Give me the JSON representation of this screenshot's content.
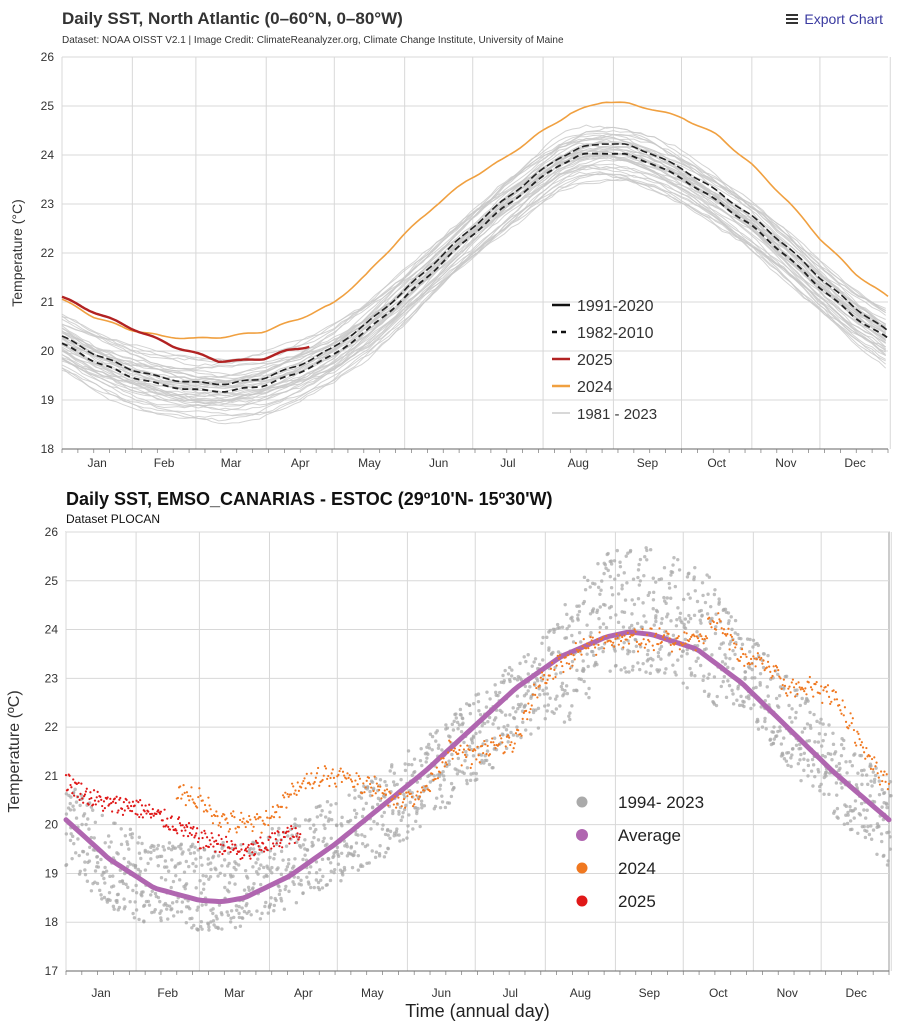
{
  "toolbar": {
    "export_label": "Export Chart",
    "export_icon": "menu-icon"
  },
  "chart_data": [
    {
      "type": "line",
      "title": "Daily SST, North Atlantic (0–60°N, 0–80°W)",
      "subtitle": "Dataset: NOAA OISST V2.1 | Image Credit: ClimateReanalyzer.org, Climate Change Institute, University of Maine",
      "ylabel": "Temperature (°C)",
      "xlabel": "",
      "ylim": [
        18,
        26
      ],
      "yticks": [
        18,
        19,
        20,
        21,
        22,
        23,
        24,
        25,
        26
      ],
      "xticks": [
        "Jan",
        "Feb",
        "Mar",
        "Apr",
        "May",
        "Jun",
        "Jul",
        "Aug",
        "Sep",
        "Oct",
        "Nov",
        "Dec"
      ],
      "grid": true,
      "legend_position": "center-right",
      "x_unit": "day of year",
      "series": [
        {
          "name": "1991-2020",
          "color": "#111111",
          "style": "solid",
          "x": [
            1,
            15,
            30,
            45,
            60,
            75,
            90,
            105,
            120,
            135,
            150,
            165,
            180,
            195,
            210,
            220,
            230,
            240,
            250,
            260,
            275,
            290,
            305,
            320,
            335,
            350,
            365
          ],
          "values": [
            20.3,
            19.95,
            19.65,
            19.45,
            19.35,
            19.33,
            19.45,
            19.7,
            20.05,
            20.55,
            21.15,
            21.8,
            22.45,
            23.05,
            23.6,
            23.95,
            24.15,
            24.25,
            24.2,
            24.05,
            23.7,
            23.25,
            22.75,
            22.15,
            21.5,
            20.9,
            20.4
          ]
        },
        {
          "name": "1982-2010",
          "color": "#111111",
          "style": "dashed",
          "x": [
            1,
            15,
            30,
            45,
            60,
            75,
            90,
            105,
            120,
            135,
            150,
            165,
            180,
            195,
            210,
            220,
            230,
            240,
            250,
            260,
            275,
            290,
            305,
            320,
            335,
            350,
            365
          ],
          "values": [
            20.15,
            19.8,
            19.5,
            19.3,
            19.2,
            19.18,
            19.3,
            19.55,
            19.9,
            20.4,
            21.0,
            21.65,
            22.3,
            22.9,
            23.45,
            23.8,
            24.0,
            24.05,
            24.0,
            23.85,
            23.5,
            23.05,
            22.55,
            21.95,
            21.3,
            20.7,
            20.25
          ]
        },
        {
          "name": "2025",
          "color": "#b22222",
          "style": "solid",
          "x": [
            1,
            10,
            20,
            30,
            40,
            50,
            60,
            70,
            80,
            90,
            100,
            110
          ],
          "values": [
            21.1,
            20.9,
            20.7,
            20.5,
            20.3,
            20.1,
            19.95,
            19.8,
            19.8,
            19.85,
            20.0,
            20.1
          ]
        },
        {
          "name": "2024",
          "color": "#f0a040",
          "style": "solid",
          "x": [
            1,
            15,
            30,
            45,
            60,
            75,
            90,
            105,
            120,
            135,
            150,
            165,
            180,
            195,
            210,
            225,
            240,
            250,
            260,
            275,
            290,
            305,
            320,
            335,
            350,
            365
          ],
          "values": [
            21.05,
            20.7,
            20.45,
            20.3,
            20.25,
            20.3,
            20.4,
            20.65,
            20.95,
            21.55,
            22.3,
            22.95,
            23.5,
            23.9,
            24.4,
            24.85,
            25.1,
            25.05,
            24.95,
            24.75,
            24.4,
            23.8,
            23.1,
            22.3,
            21.6,
            21.1
          ]
        },
        {
          "name": "1981 - 2023",
          "color": "#cccccc",
          "style": "solid",
          "values": []
        }
      ]
    },
    {
      "type": "scatter",
      "title": "Daily SST, EMSO_CANARIAS - ESTOC (29º10'N- 15º30'W)",
      "subtitle": "Dataset PLOCAN",
      "ylabel": "Temperature (ºC)",
      "xlabel": "Time (annual day)",
      "ylim": [
        17,
        26
      ],
      "yticks": [
        17,
        18,
        19,
        20,
        21,
        22,
        23,
        24,
        25,
        26
      ],
      "xticks": [
        "Jan",
        "Feb",
        "Mar",
        "Apr",
        "May",
        "Jun",
        "Jul",
        "Aug",
        "Sep",
        "Oct",
        "Nov",
        "Dec"
      ],
      "grid": true,
      "legend_position": "center-right",
      "x_unit": "day of year",
      "series": [
        {
          "name": "1994- 2023",
          "color": "#aaaaaa",
          "marker": "dot",
          "x": [
            1,
            20,
            40,
            60,
            80,
            100,
            120,
            140,
            160,
            180,
            200,
            220,
            240,
            260,
            280,
            300,
            320,
            340,
            365
          ],
          "values": [
            20.0,
            19.2,
            18.8,
            18.7,
            18.8,
            19.2,
            19.7,
            20.2,
            20.9,
            21.7,
            22.5,
            23.3,
            24.3,
            24.4,
            24.0,
            23.2,
            22.1,
            21.1,
            20.0
          ]
        },
        {
          "name": "Average",
          "color": "#b066b0",
          "marker": "line",
          "x": [
            1,
            20,
            40,
            60,
            70,
            80,
            100,
            120,
            140,
            160,
            180,
            200,
            220,
            240,
            250,
            260,
            280,
            300,
            320,
            340,
            365
          ],
          "values": [
            20.1,
            19.3,
            18.7,
            18.45,
            18.42,
            18.5,
            18.95,
            19.6,
            20.35,
            21.1,
            21.95,
            22.8,
            23.45,
            23.85,
            23.95,
            23.9,
            23.6,
            22.9,
            22.0,
            21.1,
            20.1
          ]
        },
        {
          "name": "2024",
          "color": "#f07820",
          "marker": "dot",
          "x": [
            50,
            60,
            70,
            80,
            90,
            100,
            110,
            120,
            130,
            140,
            150,
            160,
            170,
            180,
            190,
            200,
            210,
            220,
            230,
            240,
            250,
            260,
            270,
            280,
            290,
            300,
            310,
            320,
            330,
            340,
            350,
            360,
            365
          ],
          "values": [
            20.7,
            20.5,
            20.1,
            20.0,
            20.1,
            20.6,
            21.0,
            21.0,
            20.9,
            20.7,
            20.5,
            20.7,
            21.5,
            21.4,
            21.6,
            21.7,
            22.9,
            23.3,
            23.6,
            23.8,
            23.8,
            23.8,
            23.8,
            23.8,
            24.2,
            23.4,
            23.3,
            22.8,
            22.8,
            22.7,
            21.9,
            21.1,
            20.9
          ]
        },
        {
          "name": "2025",
          "color": "#e01818",
          "marker": "dot",
          "x": [
            1,
            10,
            20,
            30,
            40,
            50,
            60,
            70,
            80,
            90,
            100,
            105
          ],
          "values": [
            20.9,
            20.6,
            20.4,
            20.4,
            20.2,
            20.0,
            19.7,
            19.6,
            19.4,
            19.6,
            19.8,
            19.7
          ]
        }
      ]
    }
  ]
}
